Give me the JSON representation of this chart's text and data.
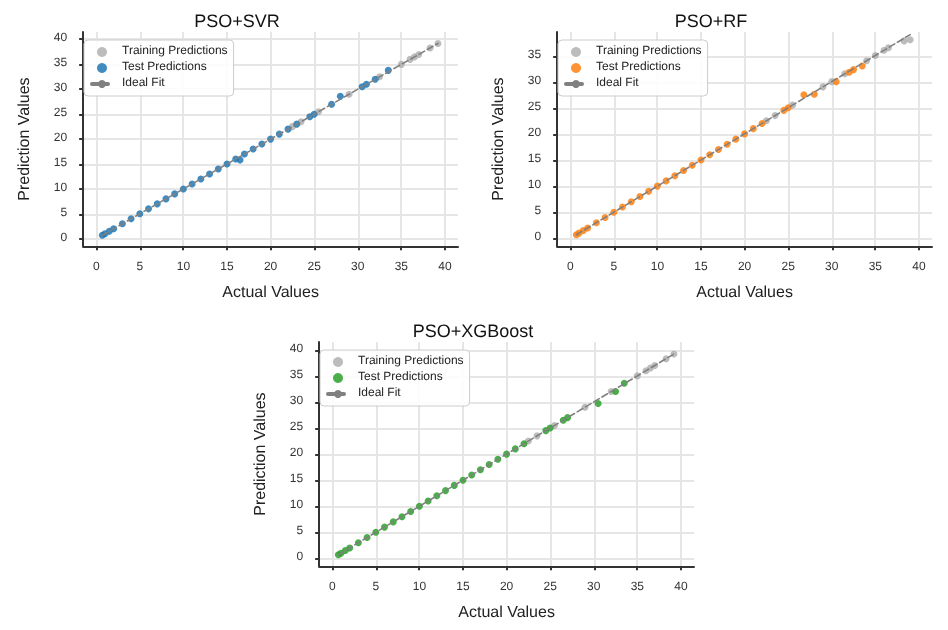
{
  "chart_data": [
    {
      "type": "scatter",
      "title": "PSO+SVR",
      "xlabel": "Actual Values",
      "ylabel": "Prediction Values",
      "xlim": [
        -1.5,
        41.5
      ],
      "ylim": [
        -1.5,
        41.5
      ],
      "xticks": [
        0,
        5,
        10,
        15,
        20,
        25,
        30,
        35,
        40
      ],
      "yticks": [
        0,
        5,
        10,
        15,
        20,
        25,
        30,
        35,
        40
      ],
      "grid": true,
      "legend": "top left",
      "marker": "circle",
      "series": [
        {
          "name": "Training Predictions",
          "color": "#b0b0b0",
          "x": [
            22.5,
            23.5,
            25.5,
            29,
            32.5,
            35,
            36,
            36.5,
            37,
            38.3,
            39.2
          ],
          "values": [
            22.5,
            23.5,
            25.5,
            29,
            32.5,
            35,
            36,
            36.5,
            37,
            38.3,
            39.2
          ]
        },
        {
          "name": "Test Predictions",
          "color": "#1f77b4",
          "x": [
            0.7,
            1,
            1.5,
            2,
            3,
            4,
            5,
            6,
            7,
            8,
            9,
            10,
            11,
            12,
            13,
            14,
            15,
            16,
            16.5,
            17,
            18,
            19,
            20,
            21,
            22,
            23,
            24.5,
            25,
            27,
            28,
            30.5,
            31,
            32,
            33.5
          ],
          "values": [
            0.7,
            1,
            1.5,
            2,
            3,
            4,
            5,
            6,
            7,
            8,
            9,
            10,
            11,
            12,
            13,
            14,
            15,
            16,
            15.8,
            17,
            18,
            19,
            20,
            21,
            22,
            23,
            24.5,
            25,
            27,
            28.6,
            30.5,
            31,
            32,
            33.8
          ]
        },
        {
          "name": "Ideal Fit",
          "type": "line",
          "line_style": "dashed",
          "marker": "none",
          "color": "#808080",
          "x": [
            0.7,
            39.2
          ],
          "values": [
            0.7,
            39.2
          ]
        }
      ]
    },
    {
      "type": "scatter",
      "title": "PSO+RF",
      "xlabel": "Actual Values",
      "ylabel": "Prediction Values",
      "xlim": [
        -1.5,
        41.5
      ],
      "ylim": [
        -1.5,
        39.5
      ],
      "xticks": [
        0,
        5,
        10,
        15,
        20,
        25,
        30,
        35,
        40
      ],
      "yticks": [
        0,
        5,
        10,
        15,
        20,
        25,
        30,
        35
      ],
      "grid": true,
      "legend": "top left",
      "marker": "circle",
      "series": [
        {
          "name": "Training Predictions",
          "color": "#b0b0b0",
          "x": [
            22.5,
            23.5,
            25.5,
            29,
            30,
            31.5,
            34,
            35,
            36,
            36.5,
            38.3,
            39
          ],
          "values": [
            22.5,
            23.5,
            25.5,
            29,
            30,
            31.5,
            34,
            35,
            36,
            36.5,
            37.8,
            38
          ]
        },
        {
          "name": "Test Predictions",
          "color": "#ff7f0e",
          "x": [
            0.7,
            1,
            1.5,
            2,
            3,
            4,
            5,
            6,
            7,
            8,
            9,
            10,
            11,
            12,
            13,
            14,
            15,
            16,
            17,
            18,
            19,
            20,
            21,
            22,
            24.5,
            25,
            26.8,
            28,
            30.5,
            32,
            32.5,
            33.5
          ],
          "values": [
            0.7,
            1,
            1.5,
            2,
            3,
            4,
            5,
            6,
            7,
            8,
            9,
            10,
            11,
            12,
            13,
            14,
            15,
            16,
            17,
            18,
            19,
            20,
            21,
            22,
            24.5,
            25,
            27.5,
            27.6,
            30,
            31.8,
            32.3,
            33
          ]
        },
        {
          "name": "Ideal Fit",
          "type": "line",
          "line_style": "dashed",
          "marker": "none",
          "color": "#808080",
          "x": [
            0.7,
            39
          ],
          "values": [
            0.7,
            39
          ]
        }
      ]
    },
    {
      "type": "scatter",
      "title": "PSO+XGBoost",
      "xlabel": "Actual Values",
      "ylabel": "Prediction Values",
      "xlim": [
        -1.5,
        41.5
      ],
      "ylim": [
        -1.5,
        41.5
      ],
      "xticks": [
        0,
        5,
        10,
        15,
        20,
        25,
        30,
        35,
        40
      ],
      "yticks": [
        0,
        5,
        10,
        15,
        20,
        25,
        30,
        35,
        40
      ],
      "grid": true,
      "legend": "top left",
      "marker": "circle",
      "series": [
        {
          "name": "Training Predictions",
          "color": "#b0b0b0",
          "x": [
            22.5,
            23.5,
            25.5,
            29,
            32,
            35,
            36,
            36.5,
            37,
            38.3,
            39.2
          ],
          "values": [
            22.5,
            23.5,
            25.5,
            29,
            32,
            35,
            36,
            36.5,
            37,
            38.3,
            39.2
          ]
        },
        {
          "name": "Test Predictions",
          "color": "#2ca02c",
          "x": [
            0.7,
            1,
            1.5,
            2,
            3,
            4,
            5,
            6,
            7,
            8,
            9,
            10,
            11,
            12,
            13,
            14,
            15,
            16,
            17,
            18,
            19,
            20,
            21,
            22,
            24.5,
            25,
            26.5,
            27,
            30.5,
            32.5,
            33.5
          ],
          "values": [
            0.7,
            1,
            1.5,
            2,
            3,
            4,
            5,
            6,
            7,
            8,
            9,
            10,
            11,
            12,
            13,
            14,
            15,
            16,
            17,
            18,
            19,
            20,
            21,
            22,
            24.5,
            25,
            26.5,
            27,
            29.7,
            32,
            33.6
          ]
        },
        {
          "name": "Ideal Fit",
          "type": "line",
          "line_style": "dashed",
          "marker": "none",
          "color": "#808080",
          "x": [
            0.7,
            39.2
          ],
          "values": [
            0.7,
            39.2
          ]
        }
      ]
    }
  ]
}
